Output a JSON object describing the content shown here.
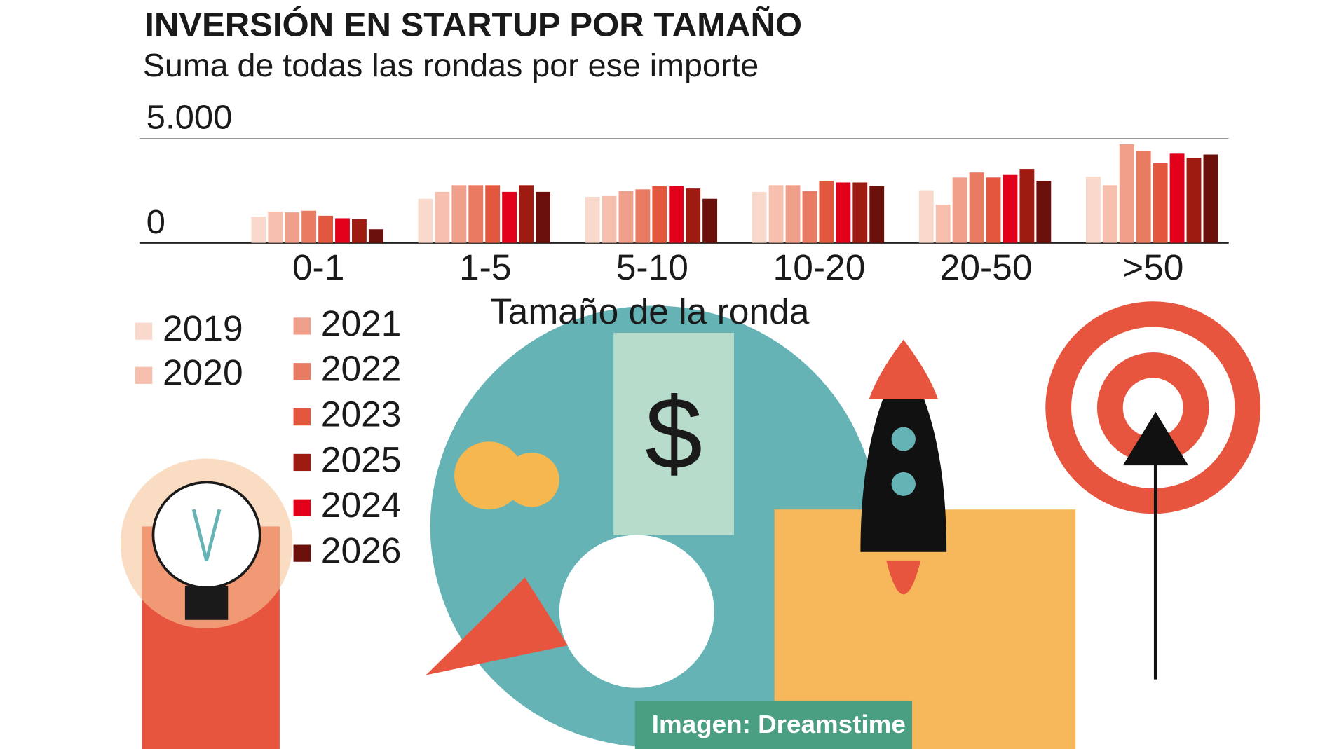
{
  "chart_data": {
    "type": "bar",
    "title": "INVERSIÓN EN STARTUP POR TAMAÑO",
    "subtitle": "Suma de todas las rondas por ese importe",
    "x_label": "Tamaño de la ronda",
    "source": "Imagen: Dreamstime",
    "categories": [
      "0-1",
      "1-5",
      "5-10",
      "10-20",
      "20-50",
      ">50"
    ],
    "ylim": [
      0,
      5000
    ],
    "yticks": [
      0,
      {
        "value": 5000,
        "label": "5.000"
      }
    ],
    "grid": true,
    "series": [
      {
        "name": "2019",
        "color": "#f9d9cc",
        "values": [
          1260,
          2110,
          2200,
          2440,
          2520,
          3170
        ]
      },
      {
        "name": "2020",
        "color": "#f6bfae",
        "values": [
          1500,
          2440,
          2240,
          2760,
          1830,
          2760
        ]
      },
      {
        "name": "2021",
        "color": "#f0a08a",
        "values": [
          1460,
          2760,
          2480,
          2760,
          3130,
          4720
        ]
      },
      {
        "name": "2022",
        "color": "#ea7b63",
        "values": [
          1540,
          2760,
          2560,
          2480,
          3370,
          4390
        ]
      },
      {
        "name": "2023",
        "color": "#e4573f",
        "values": [
          1300,
          2760,
          2720,
          2970,
          3130,
          3820
        ]
      },
      {
        "name": "2025",
        "color": "#9e1b12",
        "values": [
          1140,
          2760,
          2600,
          2890,
          3540,
          4070
        ]
      },
      {
        "name": "2024",
        "color": "#e2001a",
        "values": [
          1180,
          2440,
          2720,
          2890,
          3250,
          4270
        ]
      },
      {
        "name": "2026",
        "color": "#6b0f0a",
        "values": [
          650,
          2440,
          2110,
          2720,
          2970,
          4230
        ]
      }
    ]
  }
}
